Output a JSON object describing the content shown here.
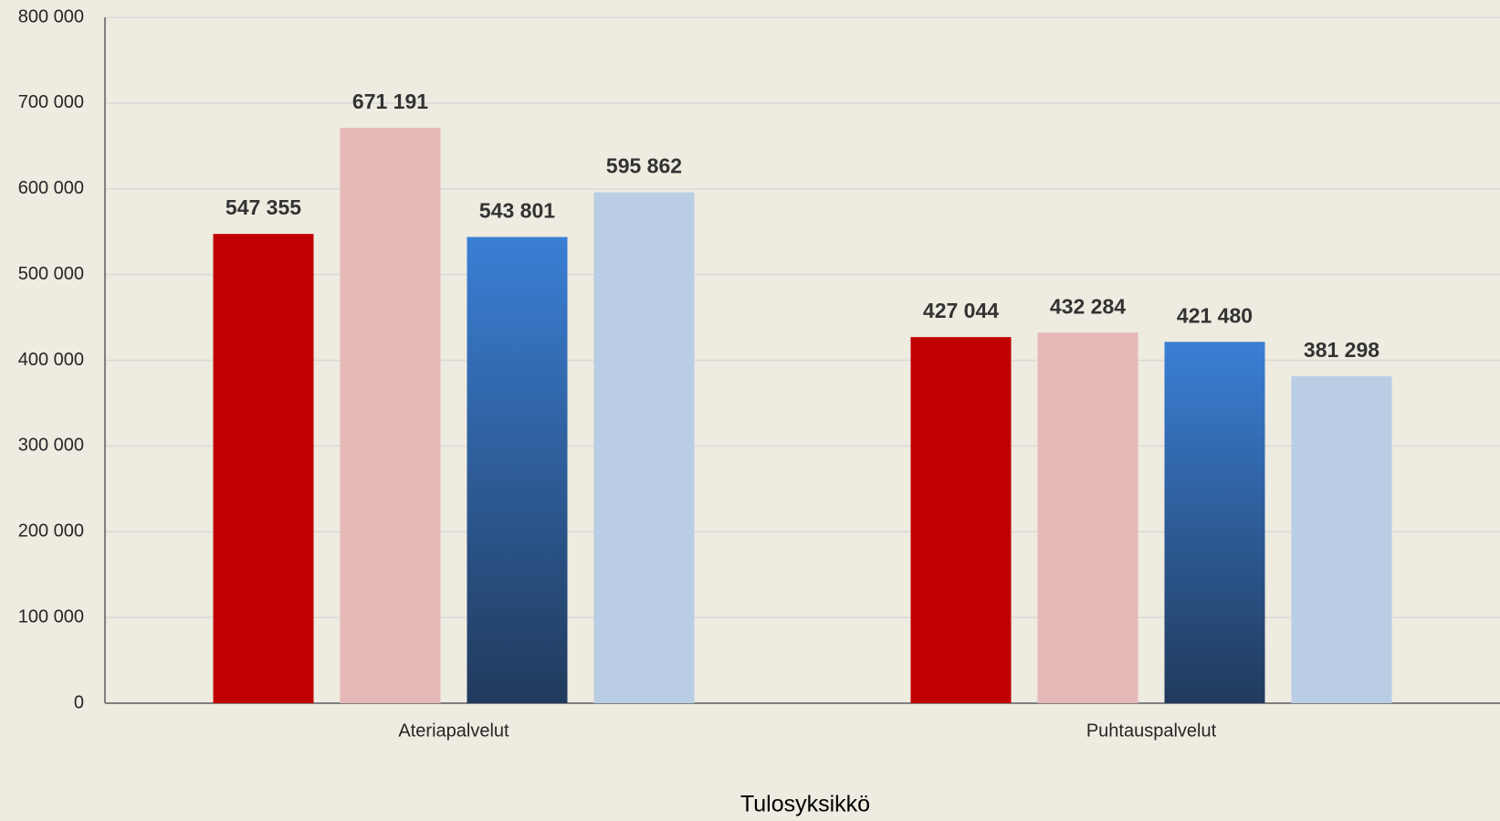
{
  "chart_data": {
    "type": "bar",
    "x_label": "Tulosyksikkö",
    "categories": [
      "Ateriapalvelut",
      "Puhtauspalvelut"
    ],
    "series": [
      {
        "color": "#c00000",
        "values": [
          547355,
          427044
        ],
        "value_labels": [
          "547 355",
          "427 044"
        ]
      },
      {
        "color": "#e6b8b7",
        "values": [
          671191,
          432284
        ],
        "value_labels": [
          "671 191",
          "432 284"
        ]
      },
      {
        "color": "#3a7fd5",
        "gradient_to": "#213a5c",
        "values": [
          543801,
          421480
        ],
        "value_labels": [
          "543 801",
          "421 480"
        ]
      },
      {
        "color": "#b9cde5",
        "values": [
          595862,
          381298
        ],
        "value_labels": [
          "595 862",
          "381 298"
        ]
      }
    ],
    "ylim": [
      0,
      800000
    ],
    "yticks": [
      0,
      {
        "value": 100000,
        "label": "100 000"
      },
      {
        "value": 200000,
        "label": "200 000"
      },
      {
        "value": 300000,
        "label": "300 000"
      },
      {
        "value": 400000,
        "label": "400 000"
      },
      {
        "value": 500000,
        "label": "500 000"
      },
      {
        "value": 600000,
        "label": "600 000"
      },
      {
        "value": 700000,
        "label": "700 000"
      },
      {
        "value": 800000,
        "label": "800 000"
      }
    ],
    "grid": true
  }
}
